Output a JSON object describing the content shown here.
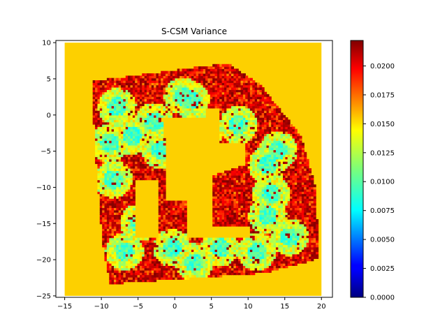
{
  "chart_data": {
    "type": "heatmap",
    "title": "S-CSM Variance",
    "xlabel": "",
    "ylabel": "",
    "xlim": [
      -16.2,
      21.5
    ],
    "ylim": [
      -25.2,
      10.3
    ],
    "extent": {
      "x": [
        -15,
        20
      ],
      "y": [
        -25,
        10
      ]
    },
    "grid": false,
    "xticks": [
      -15,
      -10,
      -5,
      0,
      5,
      10,
      15,
      20
    ],
    "yticks": [
      10,
      5,
      0,
      -5,
      -10,
      -15,
      -20,
      -25
    ],
    "colormap": "jet",
    "background_value": 0.0155,
    "colorbar": {
      "min": 0.0,
      "max": 0.0222,
      "ticks": [
        "0.0000",
        "0.0025",
        "0.0050",
        "0.0075",
        "0.0100",
        "0.0125",
        "0.0150",
        "0.0175",
        "0.0200"
      ]
    },
    "description_regions": [
      {
        "shape": "scan-ring",
        "outer": [
          [
            -11.5,
            4.5
          ],
          [
            7,
            7
          ],
          [
            11.5,
            4
          ],
          [
            17,
            -3
          ],
          [
            19,
            -10
          ],
          [
            19.5,
            -20
          ],
          [
            12,
            -22
          ],
          [
            -9,
            -23.5
          ],
          [
            -10,
            -18
          ],
          [
            -11,
            -5
          ]
        ],
        "value_range": [
          0.006,
          0.0222
        ]
      }
    ]
  },
  "colors": {
    "background_fill": "#fdd000",
    "axis": "#000000"
  }
}
